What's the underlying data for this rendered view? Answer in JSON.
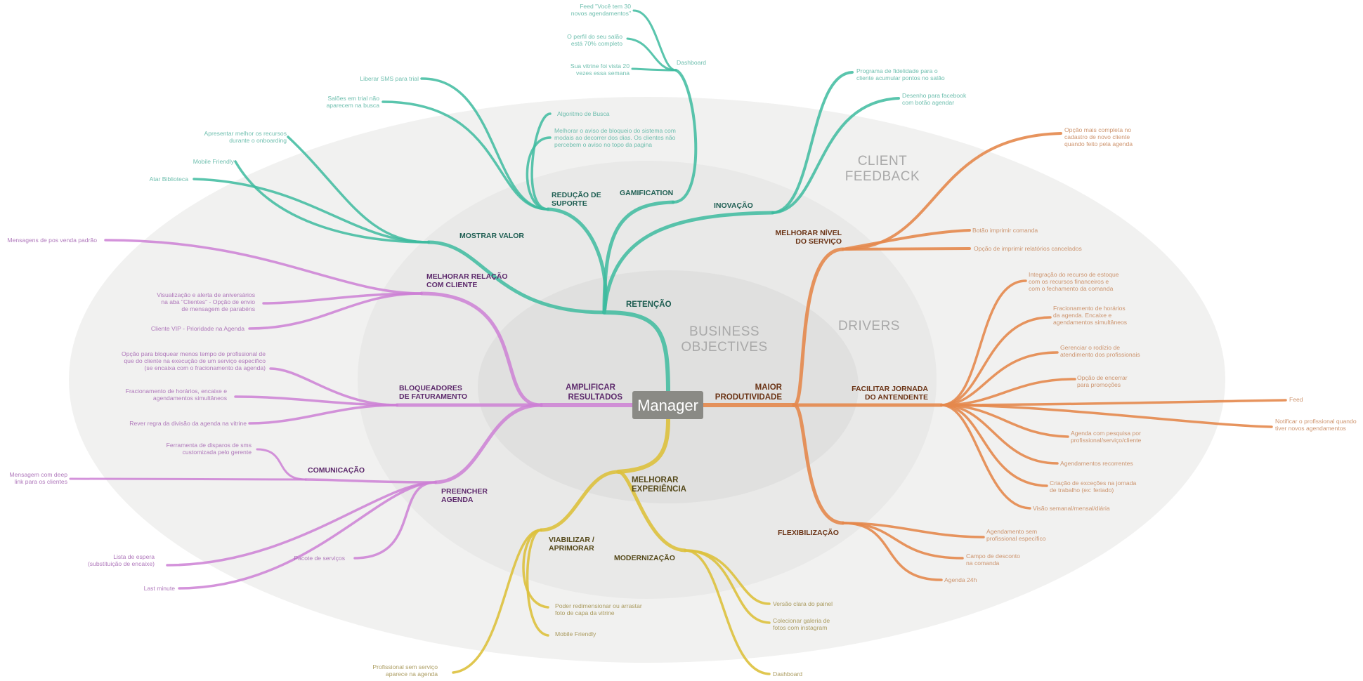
{
  "center": "Manager",
  "rings": {
    "business_objectives": "BUSINESS OBJECTIVES",
    "drivers": "DRIVERS",
    "client_feedback": "CLIENT FEEDBACK"
  },
  "colors": {
    "teal": "#3dbb9f",
    "orange": "#e4884c",
    "purple": "#cc80d5",
    "yellow": "#ddc13d",
    "ring_outer": "#f1f1f0",
    "ring_mid": "#e9e9e8",
    "ring_inner": "#e0e0df",
    "center_box": "#8a8a85"
  },
  "branches": {
    "retencao": "RETENÇÃO",
    "amplificar": "AMPLIFICAR RESULTADOS",
    "maior_produtividade": "MAIOR PRODUTIVIDADE",
    "melhorar_experiencia": "MELHORAR EXPERIÊNCIA",
    "mostrar_valor": "MOSTRAR VALOR",
    "reducao_suporte": "REDUÇÃO DE SUPORTE",
    "gamification": "GAMIFICATION",
    "inovacao": "INOVAÇÃO",
    "dashboard": "Dashboard",
    "melhorar_relacao": "MELHORAR RELAÇÃO COM CLIENTE",
    "bloqueadores": "BLOQUEADORES DE FATURAMENTO",
    "comunicacao": "COMUNICAÇÃO",
    "preencher_agenda": "PREENCHER AGENDA",
    "melhorar_nivel": "MELHORAR NÍVEL DO SERVIÇO",
    "facilitar_jornada": "FACILITAR JORNADA DO ANTENDENTE",
    "flexibilizacao": "FLEXIBILIZAÇÃO",
    "viabilizar": "VIABILIZAR / APRIMORAR",
    "modernizacao": "MODERNIZAÇÃO"
  },
  "leaves": {
    "feed_voce": "Feed \"Você tem 30 novos agendamentos\"",
    "perfil_salao": "O perfil do seu salão está 70% completo",
    "sua_vitrine": "Sua vitrine foi vista 20 vezes essa semana",
    "liberar_sms": "Liberar SMS para trial",
    "saloes_trial": "Salões em trial não aparecem na busca",
    "algoritmo_busca": "Algoritmo de Busca",
    "melhorar_aviso": "Melhorar o aviso de bloqueio do sistema com modais ao decorrer dos dias. Os clientes não percebem o aviso no topo da pagina",
    "apresentar_recursos": "Apresentar melhor os recursos durante o onboarding",
    "mobile_friendly_teal": "Mobile Friendly",
    "atar_biblioteca": "Atar Biblioteca",
    "programa_fidelidade": "Programa de fidelidade para o cliente acumular pontos no salão",
    "desenho_facebook": "Desenho para facebook com botão agendar",
    "mensagem_pos_venda": "Mensagens de pos venda padrão",
    "visualizacao_aniversarios": "Visualização e alerta de aniversários na aba \"Clientes\" - Opção de envio de mensagem de parabéns",
    "cliente_vip": "Cliente VIP - Prioridade na Agenda",
    "opcao_bloquear": "Opção para bloquear menos tempo de profissional de que do cliente na execução de um serviço específico (se encaixa com o fracionamento da agenda)",
    "fracionamento_horarios_p": "Fracionamento de horários, encaixe e agendamentos simultâneos",
    "rever_regra": "Rever regra da divisão da agenda na vitrine",
    "ferramenta_disparos": "Ferramenta de disparos de sms customizada pelo gerente",
    "mensagem_deep_link": "Mensagem com deep link para os clientes",
    "pacote_servicos": "Pacote de serviços",
    "lista_espera": "Lista de espera (substituição de encaixe)",
    "last_minute": "Last minute",
    "opcao_completa": "Opção mais completa no cadastro de novo cliente quando feito pela agenda",
    "botao_imprimir": "Botão imprimir comanda",
    "opcao_imprimir": "Opção de imprimir relatórios cancelados",
    "integracao_estoque": "Integração do recurso de estoque com os recursos financeiros e com o fechamento da comanda",
    "fracionamento_o": "Fracionamento de horários da agenda. Encaixe e agendamentos simultâneos",
    "gerenciar_rodizio": "Gerenciar o rodízio de atendimento dos profissionais",
    "opcao_encerrar": "Opção de encerrar para promoções",
    "feed": "Feed",
    "notificar_profissional": "Notificar o profissional quando tiver novos agendamentos",
    "agenda_pesquisa": "Agenda com pesquisa por profissional/serviço/cliente",
    "agendamentos_recorrentes": "Agendamentos recorrentes",
    "criacao_excecoes": "Criação de exceções na jornada de trabalho (ex: feriado)",
    "visao_semanal": "Visão semanal/mensal/diária",
    "agendamento_sem_prof": "Agendamento sem profissional específico",
    "campo_desconto": "Campo de desconto na comanda",
    "agenda_24h": "Agenda 24h",
    "poder_redimensionar": "Poder redimensionar ou arrastar foto de capa da vitrine",
    "mobile_friendly_y": "Mobile Friendly",
    "profissional_sem_servico": "Profissional sem serviço aparece na agenda",
    "versao_clara": "Versão clara do painel",
    "colecionar_galeria": "Colecionar galeria de fotos com instagram",
    "dashboard_y": "Dashboard"
  }
}
